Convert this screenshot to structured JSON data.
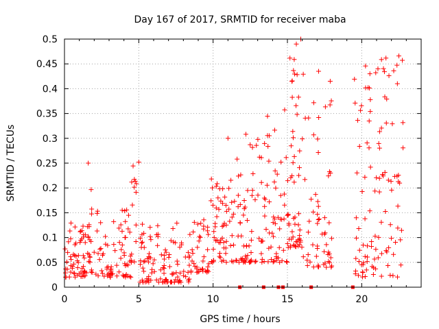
{
  "chart_data": {
    "type": "scatter",
    "title": "Day 167 of 2017, SRMTID for receiver maba",
    "xlabel": "GPS time / hours",
    "ylabel": "SRMTID / TECUs",
    "xlim": [
      0,
      24
    ],
    "ylim": [
      0,
      0.5
    ],
    "xticks": [
      0,
      5,
      10,
      15,
      20
    ],
    "yticks": [
      0,
      0.05,
      0.1,
      0.15,
      0.2,
      0.25,
      0.3,
      0.35,
      0.4,
      0.45,
      0.5
    ],
    "grid": true,
    "marker": "+",
    "color": "#ff0000",
    "cluster_spec": [
      {
        "x": [
          0.0,
          1.5
        ],
        "y": [
          0.02,
          0.13
        ],
        "n": 60
      },
      {
        "x": [
          1.5,
          1.8
        ],
        "y": [
          0.05,
          0.25
        ],
        "n": 14
      },
      {
        "x": [
          1.8,
          4.5
        ],
        "y": [
          0.02,
          0.16
        ],
        "n": 80
      },
      {
        "x": [
          4.5,
          5.0
        ],
        "y": [
          0.05,
          0.25
        ],
        "n": 14
      },
      {
        "x": [
          5.0,
          8.5
        ],
        "y": [
          0.01,
          0.13
        ],
        "n": 110
      },
      {
        "x": [
          8.5,
          9.8
        ],
        "y": [
          0.03,
          0.15
        ],
        "n": 40
      },
      {
        "x": [
          9.8,
          11.5
        ],
        "y": [
          0.05,
          0.23
        ],
        "n": 60
      },
      {
        "x": [
          11.5,
          13.5
        ],
        "y": [
          0.05,
          0.31
        ],
        "n": 70
      },
      {
        "x": [
          13.5,
          15.0
        ],
        "y": [
          0.05,
          0.36
        ],
        "n": 50
      },
      {
        "x": [
          15.0,
          16.0
        ],
        "y": [
          0.08,
          0.5
        ],
        "n": 55
      },
      {
        "x": [
          16.0,
          18.0
        ],
        "y": [
          0.04,
          0.43
        ],
        "n": 60
      },
      {
        "x": [
          19.5,
          22.8
        ],
        "y": [
          0.02,
          0.47
        ],
        "n": 110
      }
    ],
    "highlight_points": [
      {
        "x": 11.0,
        "y": 0.3
      },
      {
        "x": 15.9,
        "y": 0.5
      },
      {
        "x": 15.6,
        "y": 0.49
      },
      {
        "x": 17.1,
        "y": 0.435
      },
      {
        "x": 22.5,
        "y": 0.466
      },
      {
        "x": 22.4,
        "y": 0.41
      },
      {
        "x": 1.6,
        "y": 0.25
      },
      {
        "x": 5.0,
        "y": 0.252
      }
    ],
    "zero_markers": [
      11.8,
      13.4,
      14.4,
      14.7,
      16.6,
      19.4
    ]
  }
}
